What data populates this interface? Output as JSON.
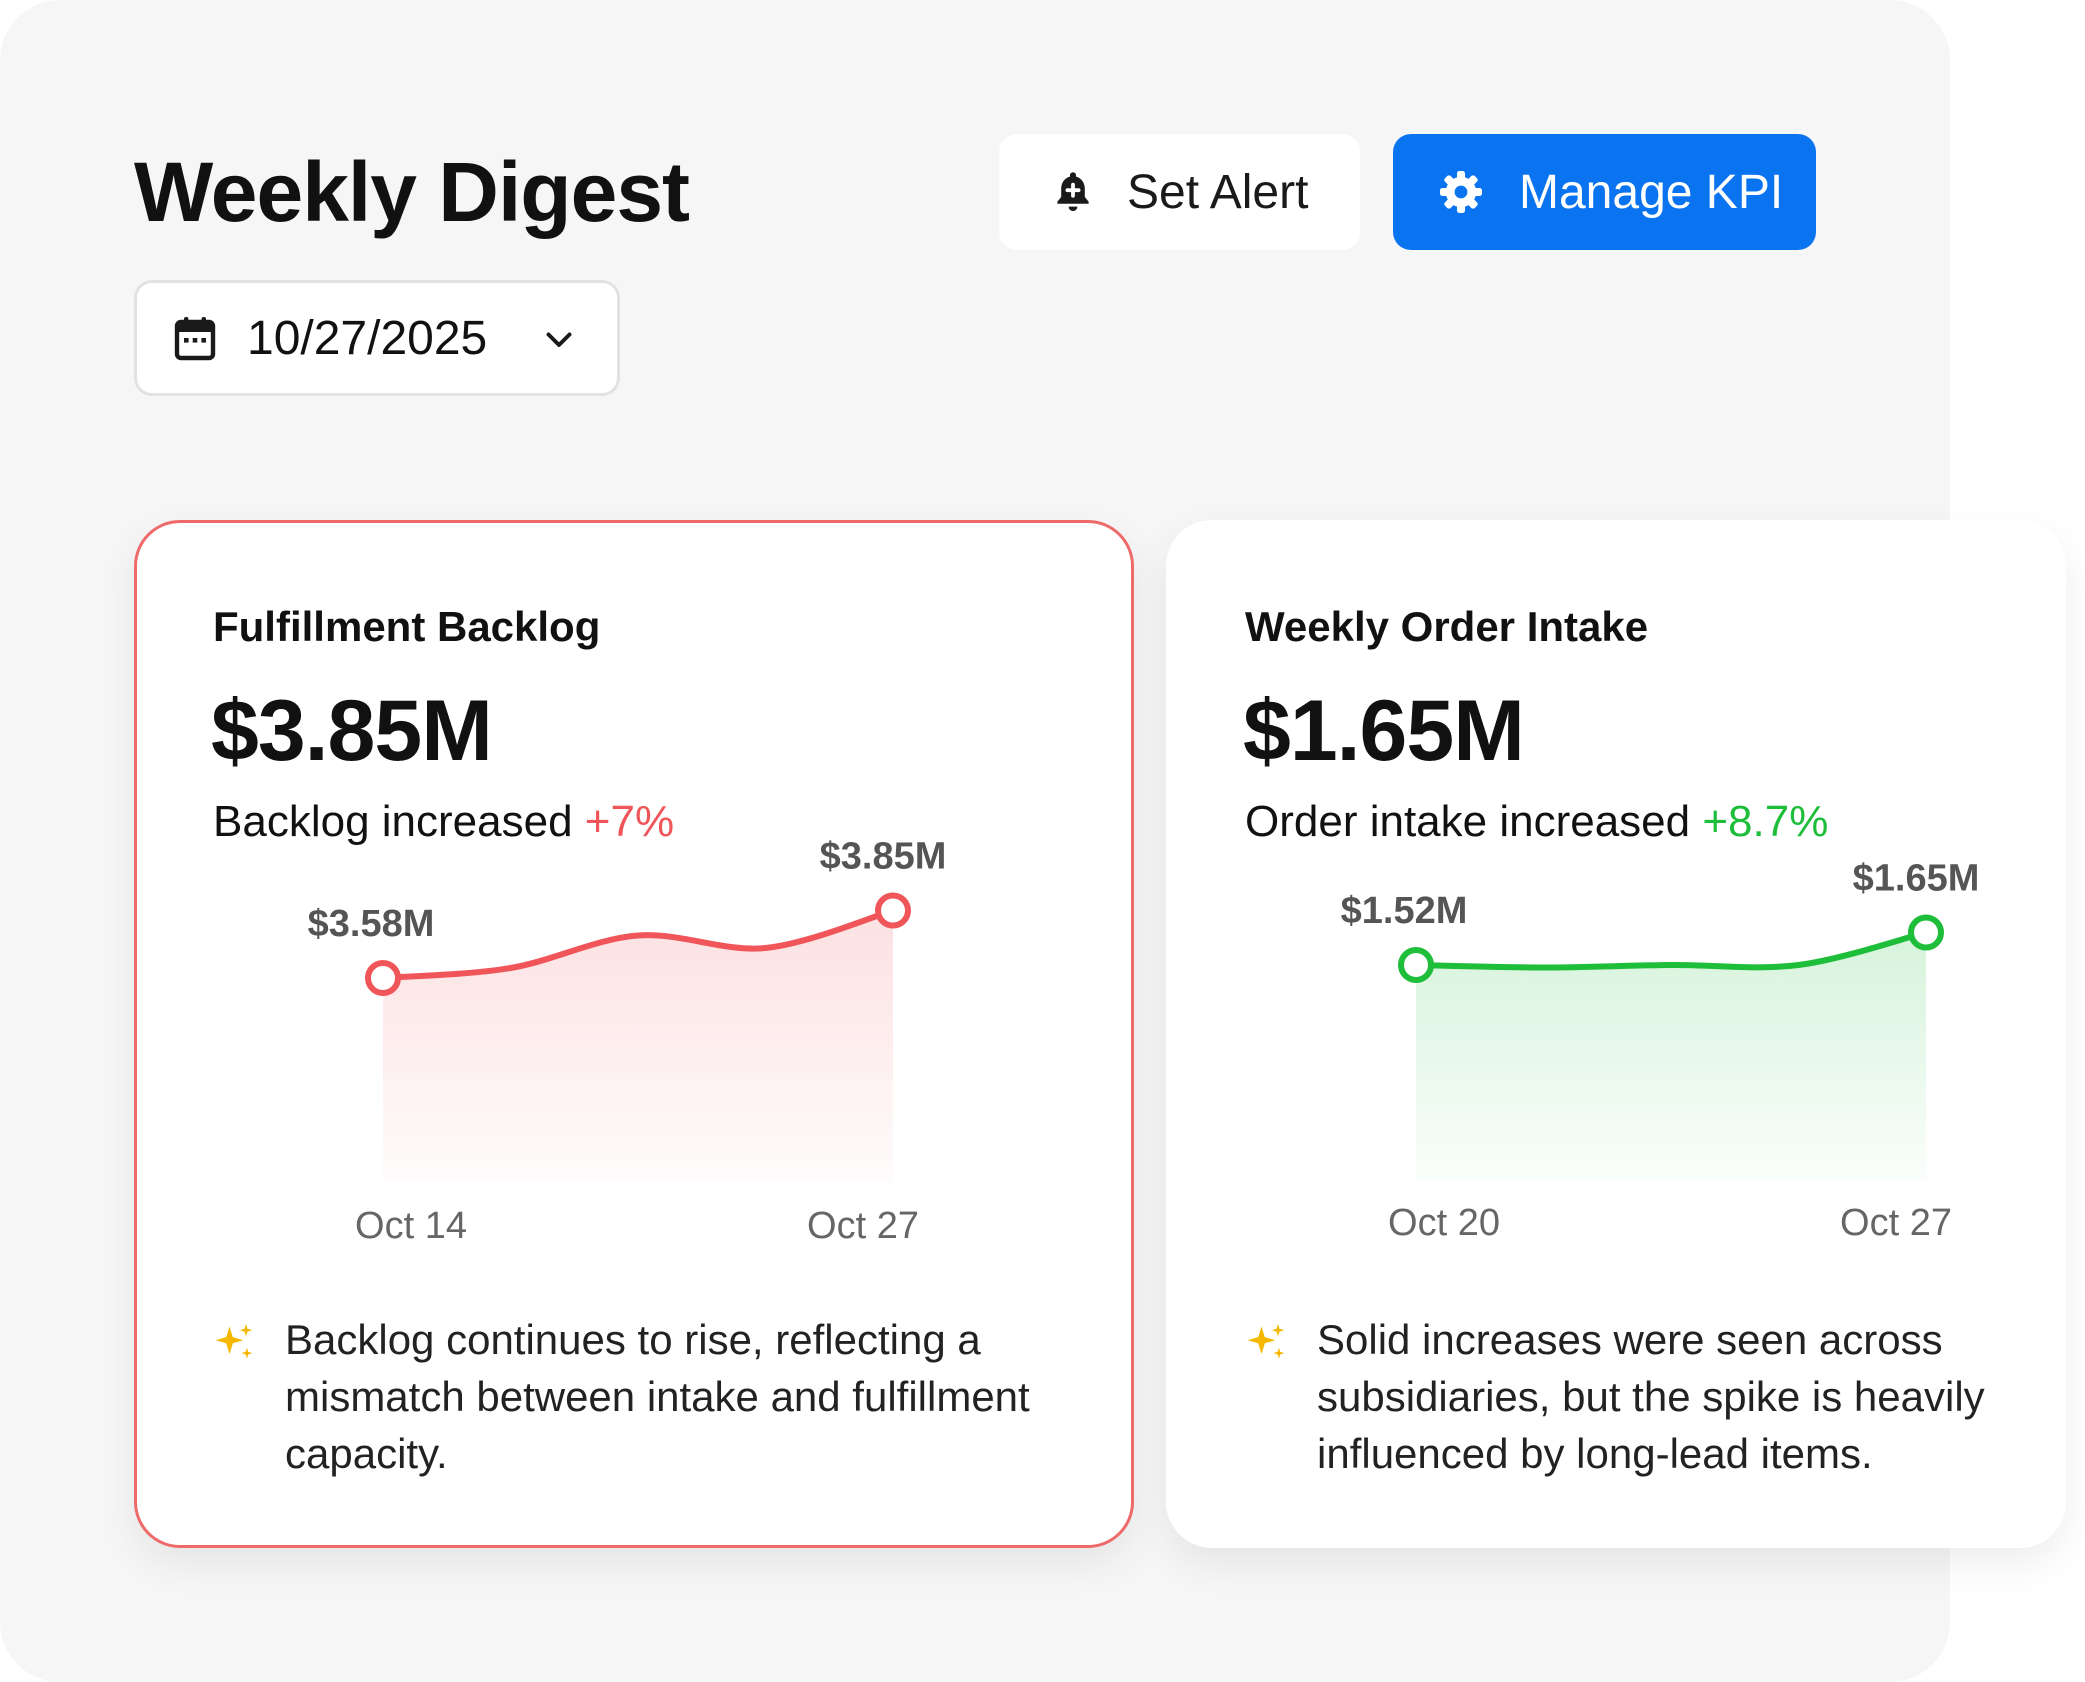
{
  "header": {
    "title": "Weekly Digest",
    "set_alert_label": "Set Alert",
    "manage_kpi_label": "Manage KPI",
    "date_value": "10/27/2025"
  },
  "colors": {
    "primary": "#0a74f0",
    "negative": "#f0555a",
    "positive": "#1ebd3a",
    "card_alert_border": "#ef6a6a",
    "sparkle": "#f5b800"
  },
  "icons": {
    "set_alert": "bell-plus-icon",
    "manage_kpi": "gear-icon",
    "date": "calendar-icon",
    "date_dropdown": "chevron-down-icon",
    "insight": "sparkles-icon"
  },
  "cards": [
    {
      "title": "Fulfillment Backlog",
      "value": "$3.85M",
      "change_text": "Backlog increased",
      "change_value": "+7%",
      "trend_color": "#f0555a",
      "start_label": "$3.58M",
      "end_label": "$3.85M",
      "x_start": "Oct 14",
      "x_end": "Oct 27",
      "insight": "Backlog continues to rise, reflecting a mismatch between intake and fulfillment capacity."
    },
    {
      "title": "Weekly Order Intake",
      "value": "$1.65M",
      "change_text": "Order intake increased",
      "change_value": "+8.7%",
      "trend_color": "#1ebd3a",
      "start_label": "$1.52M",
      "end_label": "$1.65M",
      "x_start": "Oct 20",
      "x_end": "Oct 27",
      "insight": "Solid increases were seen across subsidiaries, but the spike is heavily influenced by long-lead items."
    }
  ],
  "chart_data": [
    {
      "type": "area",
      "title": "Fulfillment Backlog",
      "unit": "$M",
      "x": [
        "Oct 14",
        "",
        "",
        "",
        "Oct 27"
      ],
      "series": [
        {
          "values": [
            3.58,
            3.62,
            3.75,
            3.7,
            3.85
          ]
        }
      ],
      "ylim": [
        3.2,
        4.0
      ],
      "labeled_points": [
        "$3.58M",
        "$3.85M"
      ],
      "grid": false
    },
    {
      "type": "area",
      "title": "Weekly Order Intake",
      "unit": "$M",
      "x": [
        "Oct 20",
        "",
        "",
        "",
        "Oct 27"
      ],
      "series": [
        {
          "values": [
            1.52,
            1.51,
            1.52,
            1.52,
            1.65
          ]
        }
      ],
      "ylim": [
        1.1,
        1.9
      ],
      "labeled_points": [
        "$1.52M",
        "$1.65M"
      ],
      "grid": false
    }
  ]
}
